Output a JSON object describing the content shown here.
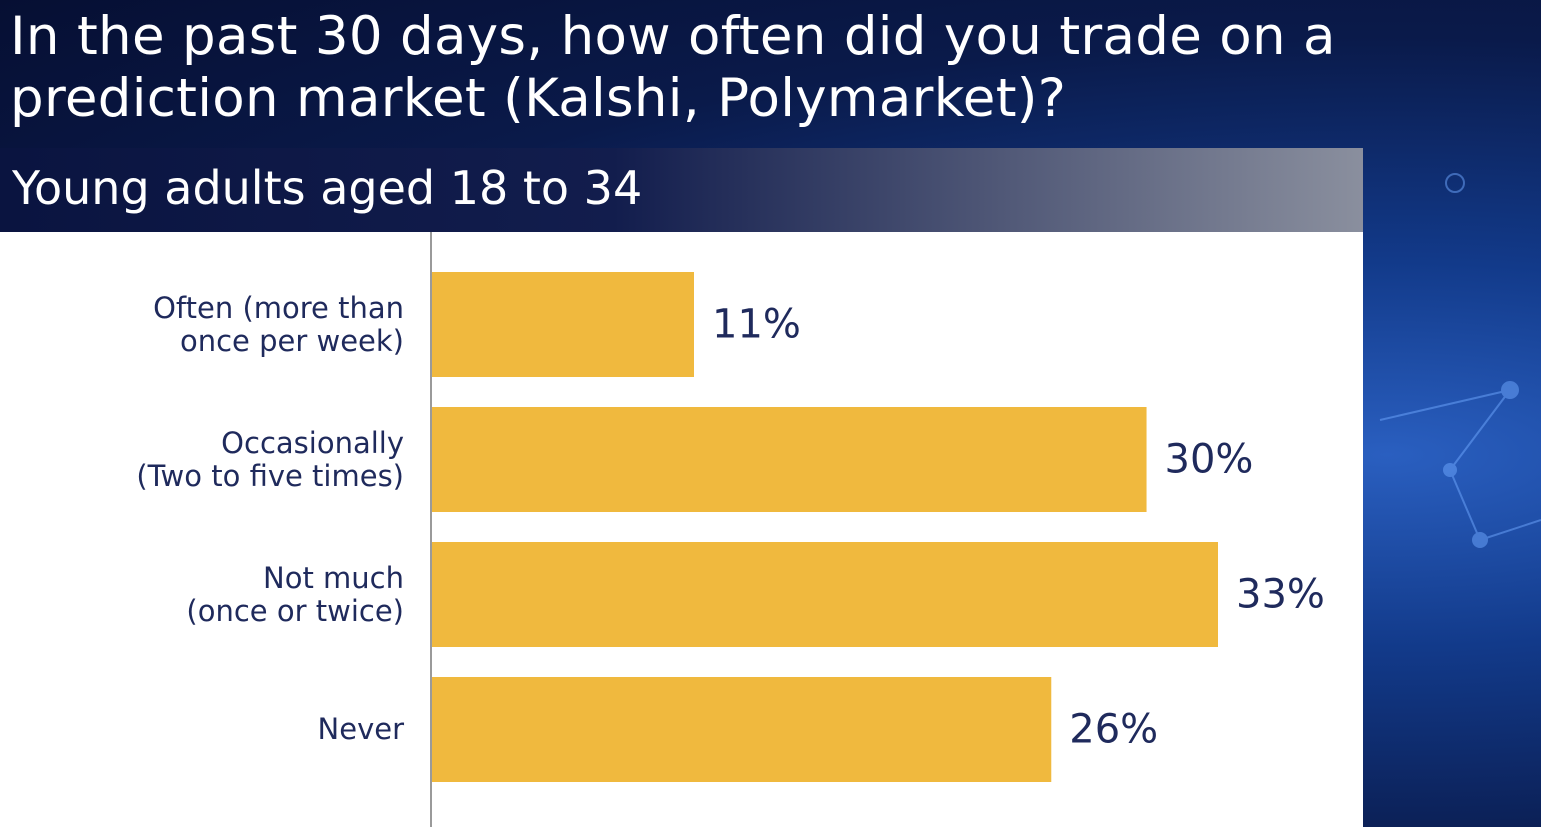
{
  "title": "In the past 30 days, how often did you trade on a prediction market (Kalshi, Polymarket)?",
  "chart_data": {
    "type": "bar",
    "orientation": "horizontal",
    "subtitle": "Young adults aged 18 to 34",
    "categories": [
      "Often (more than\nonce per week)",
      "Occasionally\n(Two to five times)",
      "Not much\n(once or twice)",
      "Never"
    ],
    "values": [
      11,
      30,
      33,
      26
    ],
    "value_labels": [
      "11%",
      "30%",
      "33%",
      "26%"
    ],
    "color": "#f0b93e"
  }
}
